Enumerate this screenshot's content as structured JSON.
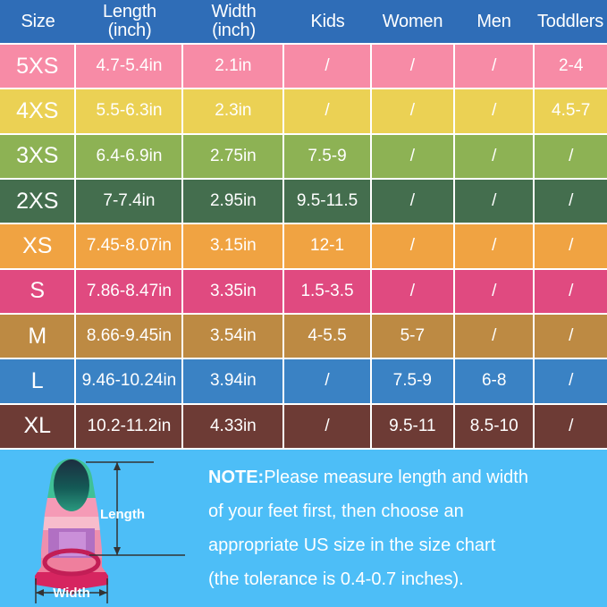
{
  "colors": {
    "header_bg": "#2f6db7",
    "note_bg": "#4dbef7",
    "grid_line": "#ffffff",
    "text": "#ffffff"
  },
  "table": {
    "columns": [
      {
        "label": "Size",
        "sub": ""
      },
      {
        "label": "Length",
        "sub": "(inch)"
      },
      {
        "label": "Width",
        "sub": "(inch)"
      },
      {
        "label": "Kids",
        "sub": ""
      },
      {
        "label": "Women",
        "sub": ""
      },
      {
        "label": "Men",
        "sub": ""
      },
      {
        "label": "Toddlers",
        "sub": ""
      }
    ],
    "rows": [
      {
        "size": "5XS",
        "length": "4.7-5.4in",
        "width": "2.1in",
        "kids": "/",
        "women": "/",
        "men": "/",
        "toddlers": "2-4",
        "color": "#f78ba6"
      },
      {
        "size": "4XS",
        "length": "5.5-6.3in",
        "width": "2.3in",
        "kids": "/",
        "women": "/",
        "men": "/",
        "toddlers": "4.5-7",
        "color": "#ebd154"
      },
      {
        "size": "3XS",
        "length": "6.4-6.9in",
        "width": "2.75in",
        "kids": "7.5-9",
        "women": "/",
        "men": "/",
        "toddlers": "/",
        "color": "#8db254"
      },
      {
        "size": "2XS",
        "length": "7-7.4in",
        "width": "2.95in",
        "kids": "9.5-11.5",
        "women": "/",
        "men": "/",
        "toddlers": "/",
        "color": "#446e4e"
      },
      {
        "size": "XS",
        "length": "7.45-8.07in",
        "width": "3.15in",
        "kids": "12-1",
        "women": "/",
        "men": "/",
        "toddlers": "/",
        "color": "#f0a342"
      },
      {
        "size": "S",
        "length": "7.86-8.47in",
        "width": "3.35in",
        "kids": "1.5-3.5",
        "women": "/",
        "men": "/",
        "toddlers": "/",
        "color": "#e04a80"
      },
      {
        "size": "M",
        "length": "8.66-9.45in",
        "width": "3.54in",
        "kids": "4-5.5",
        "women": "5-7",
        "men": "/",
        "toddlers": "/",
        "color": "#bd8a43"
      },
      {
        "size": "L",
        "length": "9.46-10.24in",
        "width": "3.94in",
        "kids": "/",
        "women": "7.5-9",
        "men": "6-8",
        "toddlers": "/",
        "color": "#3a82c4"
      },
      {
        "size": "XL",
        "length": "10.2-11.2in",
        "width": "4.33in",
        "kids": "/",
        "women": "9.5-11",
        "men": "8.5-10",
        "toddlers": "/",
        "color": "#6d3b35"
      }
    ]
  },
  "note": {
    "bold": "NOTE:",
    "lines": [
      "Please measure length and width",
      "of your feet first, then choose an",
      "appropriate US size in the size chart",
      "(the tolerance is 0.4-0.7 inches)."
    ]
  },
  "fin": {
    "length_label": "Length",
    "width_label": "Width"
  }
}
